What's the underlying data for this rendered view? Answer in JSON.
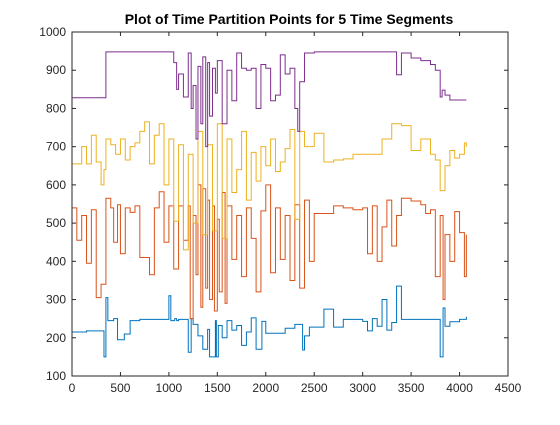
{
  "chart_data": {
    "type": "line",
    "title": "Plot of Time Partition Points for 5 Time Segments",
    "xlabel": "",
    "ylabel": "",
    "xlim": [
      0,
      4500
    ],
    "ylim": [
      100,
      1000
    ],
    "xticks": [
      "0",
      "500",
      "1000",
      "1500",
      "2000",
      "2500",
      "3000",
      "3500",
      "4000",
      "4500"
    ],
    "yticks": [
      "100",
      "200",
      "300",
      "400",
      "500",
      "600",
      "700",
      "800",
      "900",
      "1000"
    ],
    "grid": false,
    "legend": "none",
    "series": [
      {
        "color": "#0072BD",
        "x": [
          0,
          150,
          330,
          350,
          370,
          430,
          470,
          540,
          600,
          700,
          1000,
          1020,
          1060,
          1080,
          1100,
          1200,
          1230,
          1250,
          1300,
          1350,
          1400,
          1420,
          1480,
          1490,
          1510,
          1550,
          1600,
          1650,
          1700,
          1750,
          1800,
          1850,
          1900,
          1960,
          2000,
          2100,
          2200,
          2300,
          2380,
          2400,
          2450,
          2600,
          2700,
          2800,
          3000,
          3050,
          3100,
          3150,
          3200,
          3250,
          3300,
          3350,
          3400,
          3500,
          3600,
          3700,
          3800,
          3830,
          3850,
          3900,
          4000,
          4070
        ],
        "y": [
          215,
          218,
          150,
          305,
          245,
          250,
          195,
          210,
          245,
          248,
          310,
          245,
          250,
          245,
          248,
          162,
          250,
          235,
          205,
          170,
          222,
          150,
          245,
          150,
          232,
          200,
          245,
          220,
          232,
          180,
          215,
          252,
          170,
          243,
          212,
          212,
          225,
          235,
          168,
          205,
          228,
          275,
          228,
          248,
          243,
          218,
          250,
          230,
          300,
          220,
          240,
          335,
          248,
          248,
          248,
          248,
          150,
          278,
          230,
          242,
          248,
          255
        ]
      },
      {
        "color": "#D95319",
        "x": [
          0,
          50,
          100,
          150,
          200,
          250,
          300,
          350,
          400,
          430,
          470,
          500,
          550,
          600,
          650,
          700,
          800,
          850,
          900,
          950,
          1000,
          1050,
          1100,
          1150,
          1200,
          1220,
          1250,
          1280,
          1300,
          1330,
          1350,
          1380,
          1400,
          1420,
          1450,
          1470,
          1500,
          1520,
          1550,
          1580,
          1600,
          1650,
          1700,
          1750,
          1800,
          1850,
          1900,
          1950,
          2000,
          2050,
          2100,
          2150,
          2200,
          2250,
          2300,
          2350,
          2400,
          2450,
          2500,
          2600,
          2700,
          2800,
          2900,
          3000,
          3050,
          3100,
          3150,
          3200,
          3250,
          3300,
          3350,
          3400,
          3500,
          3600,
          3650,
          3700,
          3750,
          3800,
          3830,
          3850,
          3900,
          3950,
          4000,
          4050,
          4070
        ],
        "y": [
          540,
          455,
          520,
          395,
          535,
          305,
          340,
          565,
          540,
          450,
          548,
          420,
          540,
          528,
          545,
          410,
          365,
          540,
          582,
          450,
          545,
          380,
          545,
          455,
          545,
          250,
          520,
          365,
          600,
          280,
          590,
          330,
          560,
          300,
          545,
          270,
          510,
          320,
          580,
          290,
          545,
          405,
          520,
          360,
          540,
          460,
          320,
          532,
          600,
          370,
          540,
          405,
          520,
          350,
          548,
          330,
          560,
          400,
          525,
          525,
          545,
          540,
          535,
          540,
          420,
          545,
          400,
          490,
          560,
          440,
          520,
          565,
          558,
          548,
          525,
          535,
          360,
          520,
          300,
          470,
          400,
          530,
          475,
          360,
          470
        ]
      },
      {
        "color": "#EDB120",
        "x": [
          0,
          100,
          150,
          200,
          250,
          300,
          330,
          350,
          400,
          450,
          500,
          550,
          600,
          650,
          700,
          750,
          800,
          850,
          900,
          950,
          1000,
          1050,
          1100,
          1150,
          1200,
          1250,
          1300,
          1350,
          1400,
          1450,
          1500,
          1550,
          1600,
          1650,
          1700,
          1750,
          1800,
          1850,
          1900,
          1950,
          2000,
          2050,
          2100,
          2150,
          2200,
          2250,
          2300,
          2350,
          2400,
          2500,
          2600,
          2700,
          2800,
          2900,
          3000,
          3100,
          3200,
          3300,
          3400,
          3500,
          3600,
          3700,
          3750,
          3800,
          3850,
          3900,
          3950,
          4000,
          4050,
          4070
        ],
        "y": [
          655,
          700,
          655,
          730,
          660,
          600,
          640,
          720,
          705,
          680,
          720,
          665,
          700,
          710,
          740,
          765,
          655,
          730,
          760,
          600,
          720,
          505,
          705,
          430,
          680,
          500,
          740,
          470,
          705,
          480,
          760,
          460,
          720,
          580,
          640,
          740,
          560,
          685,
          610,
          700,
          650,
          720,
          635,
          660,
          695,
          745,
          510,
          740,
          700,
          735,
          660,
          665,
          668,
          680,
          680,
          680,
          720,
          760,
          755,
          690,
          720,
          680,
          665,
          585,
          650,
          690,
          670,
          680,
          710,
          700
        ]
      },
      {
        "color": "#7E2F8E",
        "x": [
          0,
          100,
          200,
          300,
          350,
          400,
          500,
          600,
          700,
          800,
          900,
          1000,
          1050,
          1080,
          1100,
          1150,
          1200,
          1230,
          1250,
          1280,
          1300,
          1330,
          1350,
          1380,
          1400,
          1420,
          1450,
          1480,
          1500,
          1550,
          1600,
          1650,
          1700,
          1750,
          1800,
          1850,
          1900,
          1950,
          2000,
          2050,
          2100,
          2150,
          2200,
          2250,
          2300,
          2330,
          2350,
          2400,
          2500,
          2600,
          2700,
          2800,
          2900,
          3000,
          3100,
          3200,
          3300,
          3350,
          3400,
          3500,
          3600,
          3700,
          3750,
          3800,
          3820,
          3850,
          3900,
          4000,
          4070
        ],
        "y": [
          828,
          828,
          828,
          828,
          948,
          948,
          948,
          948,
          948,
          948,
          948,
          948,
          920,
          850,
          890,
          830,
          945,
          800,
          860,
          720,
          910,
          760,
          935,
          700,
          920,
          780,
          905,
          840,
          925,
          760,
          900,
          820,
          945,
          905,
          900,
          905,
          800,
          915,
          905,
          820,
          835,
          940,
          890,
          905,
          800,
          740,
          870,
          945,
          948,
          948,
          948,
          948,
          948,
          948,
          948,
          948,
          948,
          888,
          945,
          932,
          925,
          915,
          900,
          830,
          848,
          835,
          822,
          822,
          822
        ]
      }
    ]
  }
}
